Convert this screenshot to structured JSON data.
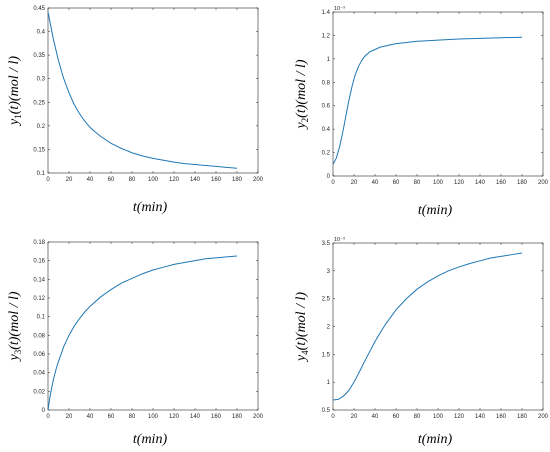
{
  "chart_data": [
    {
      "type": "line",
      "xlabel": "t(min)",
      "ylabel_main": "y",
      "ylabel_sub": "1",
      "ylabel_rest": "(t)(mol / l)",
      "xlim": [
        0,
        200
      ],
      "xticks": [
        0,
        20,
        40,
        60,
        80,
        100,
        120,
        140,
        160,
        180,
        200
      ],
      "ylim": [
        0.1,
        0.45
      ],
      "yticks": [
        0.1,
        0.15,
        0.2,
        0.25,
        0.3,
        0.35,
        0.4,
        0.45
      ],
      "ytick_labels": [
        "0.1",
        "0.15",
        "0.2",
        "0.25",
        "0.3",
        "0.35",
        "0.4",
        "0.45"
      ],
      "exponent": "",
      "series": [
        {
          "x": [
            0,
            5,
            10,
            15,
            20,
            25,
            30,
            35,
            40,
            45,
            50,
            60,
            70,
            80,
            90,
            100,
            110,
            120,
            130,
            140,
            150,
            160,
            170,
            180
          ],
          "y": [
            0.442,
            0.385,
            0.338,
            0.3,
            0.27,
            0.245,
            0.226,
            0.21,
            0.197,
            0.187,
            0.178,
            0.163,
            0.152,
            0.143,
            0.136,
            0.131,
            0.127,
            0.123,
            0.12,
            0.118,
            0.116,
            0.114,
            0.112,
            0.11
          ]
        }
      ]
    },
    {
      "type": "line",
      "xlabel": "t(min)",
      "ylabel_main": "y",
      "ylabel_sub": "2",
      "ylabel_rest": "(t)(mol / l)",
      "xlim": [
        0,
        200
      ],
      "xticks": [
        0,
        20,
        40,
        60,
        80,
        100,
        120,
        140,
        160,
        180,
        200
      ],
      "ylim": [
        0,
        1.4
      ],
      "yticks": [
        0,
        0.2,
        0.4,
        0.6,
        0.8,
        1.0,
        1.2,
        1.4
      ],
      "ytick_labels": [
        "0",
        "0.2",
        "0.4",
        "0.6",
        "0.8",
        "1",
        "1.2",
        "1.4"
      ],
      "exponent": "10⁻³",
      "series": [
        {
          "x": [
            0,
            3,
            6,
            9,
            12,
            15,
            18,
            21,
            24,
            27,
            30,
            35,
            40,
            45,
            50,
            60,
            70,
            80,
            90,
            100,
            120,
            140,
            160,
            180
          ],
          "y": [
            0.1,
            0.15,
            0.24,
            0.36,
            0.5,
            0.64,
            0.76,
            0.86,
            0.93,
            0.98,
            1.02,
            1.06,
            1.08,
            1.1,
            1.11,
            1.13,
            1.14,
            1.15,
            1.155,
            1.16,
            1.17,
            1.175,
            1.18,
            1.185
          ]
        }
      ]
    },
    {
      "type": "line",
      "xlabel": "t(min)",
      "ylabel_main": "y",
      "ylabel_sub": "3",
      "ylabel_rest": "(t)(mol / l)",
      "xlim": [
        0,
        200
      ],
      "xticks": [
        0,
        20,
        40,
        60,
        80,
        100,
        120,
        140,
        160,
        180,
        200
      ],
      "ylim": [
        0,
        0.18
      ],
      "yticks": [
        0,
        0.02,
        0.04,
        0.06,
        0.08,
        0.1,
        0.12,
        0.14,
        0.16,
        0.18
      ],
      "ytick_labels": [
        "0",
        "0.02",
        "0.04",
        "0.06",
        "0.08",
        "0.1",
        "0.12",
        "0.14",
        "0.16",
        "0.18"
      ],
      "exponent": "",
      "series": [
        {
          "x": [
            0,
            2,
            5,
            8,
            10,
            15,
            20,
            25,
            30,
            35,
            40,
            50,
            60,
            70,
            80,
            90,
            100,
            110,
            120,
            130,
            140,
            150,
            160,
            170,
            180
          ],
          "y": [
            0.0,
            0.015,
            0.032,
            0.045,
            0.052,
            0.068,
            0.08,
            0.09,
            0.098,
            0.105,
            0.111,
            0.121,
            0.129,
            0.136,
            0.141,
            0.146,
            0.15,
            0.153,
            0.156,
            0.158,
            0.16,
            0.162,
            0.163,
            0.164,
            0.165
          ]
        }
      ]
    },
    {
      "type": "line",
      "xlabel": "t(min)",
      "ylabel_main": "y",
      "ylabel_sub": "4",
      "ylabel_rest": "(t)(mol / l)",
      "xlim": [
        0,
        200
      ],
      "xticks": [
        0,
        20,
        40,
        60,
        80,
        100,
        120,
        140,
        160,
        180,
        200
      ],
      "ylim": [
        0.5,
        3.5
      ],
      "yticks": [
        0.5,
        1,
        1.5,
        2,
        2.5,
        3,
        3.5
      ],
      "ytick_labels": [
        "0.5",
        "1",
        "1.5",
        "2",
        "2.5",
        "3",
        "3.5"
      ],
      "exponent": "10⁻³",
      "series": [
        {
          "x": [
            0,
            5,
            10,
            15,
            20,
            25,
            30,
            35,
            40,
            45,
            50,
            60,
            70,
            80,
            90,
            100,
            110,
            120,
            130,
            140,
            150,
            160,
            170,
            180
          ],
          "y": [
            0.68,
            0.69,
            0.75,
            0.85,
            1.0,
            1.18,
            1.37,
            1.55,
            1.73,
            1.89,
            2.04,
            2.3,
            2.5,
            2.67,
            2.8,
            2.91,
            3.0,
            3.07,
            3.13,
            3.18,
            3.23,
            3.26,
            3.29,
            3.32
          ]
        }
      ]
    }
  ],
  "colors": {
    "line": "#1f77b4",
    "axes": "#262626"
  }
}
